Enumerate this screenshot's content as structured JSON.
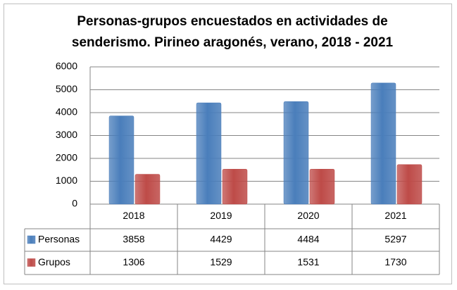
{
  "chart_data": {
    "type": "bar",
    "title": "Personas-grupos encuestados en actividades de senderismo. Pirineo aragonés, verano, 2018 - 2021",
    "categories": [
      "2018",
      "2019",
      "2020",
      "2021"
    ],
    "series": [
      {
        "name": "Personas",
        "color": "#4a7ebb",
        "values": [
          3858,
          4429,
          4484,
          5297
        ]
      },
      {
        "name": "Grupos",
        "color": "#be4b48",
        "values": [
          1306,
          1529,
          1531,
          1730
        ]
      }
    ],
    "ylim": [
      0,
      6000
    ],
    "yticks": [
      0,
      1000,
      2000,
      3000,
      4000,
      5000,
      6000
    ],
    "grid": true
  }
}
